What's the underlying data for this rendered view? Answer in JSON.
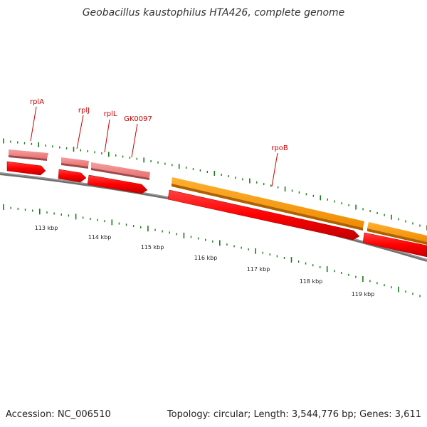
{
  "title": "Geobacillus kaustophilus HTA426, complete genome",
  "footer": {
    "accession": "Accession: NC_006510",
    "summary": "Topology: circular; Length: 3,544,776 bp; Genes: 3,611"
  },
  "colors": {
    "gene_red": "#ff0000",
    "gene_red_dark": "#b40000",
    "gene_pink": "#f08080",
    "gene_pink_dark": "#a04848",
    "gene_orange": "#ff9900",
    "gene_orange_dark": "#b06000",
    "backbone": "#808080",
    "tick_green": "#1a7a1a",
    "label_red": "#cc0000"
  },
  "genes": [
    {
      "name": "rplA"
    },
    {
      "name": "rplJ"
    },
    {
      "name": "rplL"
    },
    {
      "name": "GK0097"
    },
    {
      "name": "rpoB"
    }
  ],
  "scale_labels": [
    "113 kbp",
    "114 kbp",
    "115 kbp",
    "116 kbp",
    "117 kbp",
    "118 kbp",
    "119 kbp"
  ]
}
